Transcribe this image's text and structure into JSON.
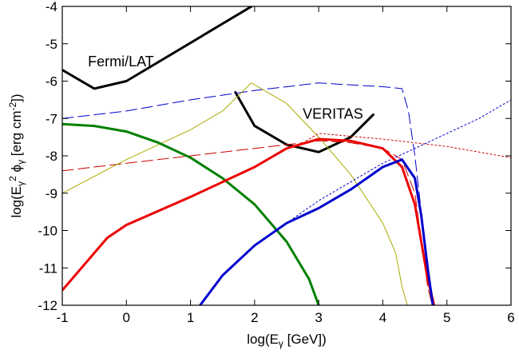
{
  "chart_data": {
    "type": "line",
    "xlim": [
      -1,
      6
    ],
    "ylim": [
      -12,
      -4
    ],
    "x_ticks": [
      "-1",
      "0",
      "1",
      "2",
      "3",
      "4",
      "5",
      "6"
    ],
    "y_ticks": [
      "-12",
      "-11",
      "-10",
      "-9",
      "-8",
      "-7",
      "-6",
      "-5",
      "-4"
    ],
    "xlabel": {
      "pre": "log(E",
      "sub": "γ",
      "post": " [GeV])"
    },
    "ylabel": {
      "pre": "log(E",
      "sub1": "γ",
      "sup": "2",
      "mid": " ϕ",
      "sub2": "γ",
      "post": " [erg cm",
      "sup2": "-2",
      "end": "])"
    },
    "annotations": [
      {
        "text": "Fermi/LAT",
        "x": -0.6,
        "y": -5.6
      },
      {
        "text": "VERITAS",
        "x": 2.75,
        "y": -7.0
      }
    ],
    "series": [
      {
        "color": "#000000",
        "dash": "solid",
        "width": 3,
        "x": [
          -1,
          -0.5,
          0,
          2.0
        ],
        "y": [
          -5.7,
          -6.2,
          -6.0,
          -3.95
        ]
      },
      {
        "color": "#000000",
        "dash": "solid",
        "width": 3,
        "x": [
          1.7,
          2.0,
          2.5,
          3.0,
          3.5,
          3.85
        ],
        "y": [
          -6.3,
          -7.2,
          -7.7,
          -7.9,
          -7.5,
          -6.9
        ]
      },
      {
        "color": "#0000cc",
        "dash": "long",
        "width": 1,
        "x": [
          -1,
          0,
          1,
          2,
          3,
          3.5,
          4,
          4.3,
          4.4,
          4.5,
          4.6,
          4.7,
          4.8,
          4.9
        ],
        "y": [
          -7.0,
          -6.8,
          -6.5,
          -6.25,
          -6.05,
          -6.1,
          -6.15,
          -6.2,
          -6.8,
          -8.0,
          -9.5,
          -11.0,
          -12.0,
          -12.5
        ]
      },
      {
        "color": "#cc0000",
        "dash": "long",
        "width": 1,
        "x": [
          -1,
          0,
          1,
          2,
          3,
          3.5,
          4,
          4.3,
          4.5,
          4.7,
          4.8
        ],
        "y": [
          -8.4,
          -8.2,
          -8.0,
          -7.8,
          -7.6,
          -7.65,
          -7.8,
          -8.1,
          -9.0,
          -11.5,
          -12.2
        ]
      },
      {
        "color": "#aaaa00",
        "dash": "solid",
        "width": 1,
        "x": [
          -1,
          0,
          1,
          1.5,
          1.95,
          2.5,
          3.0,
          3.5,
          4.0,
          4.2,
          4.3,
          4.4
        ],
        "y": [
          -9.0,
          -8.1,
          -7.3,
          -6.8,
          -6.05,
          -6.6,
          -7.5,
          -8.5,
          -9.8,
          -10.6,
          -11.5,
          -12.1
        ]
      },
      {
        "color": "#cc0000",
        "dash": "dot",
        "width": 1,
        "x": [
          2.8,
          3.0,
          4.0,
          5.0,
          6.0
        ],
        "y": [
          -7.6,
          -7.4,
          -7.55,
          -7.75,
          -8.05
        ]
      },
      {
        "color": "#0000cc",
        "dash": "dot",
        "width": 1,
        "x": [
          2.5,
          3.0,
          4.0,
          4.5,
          5.0,
          5.5,
          6.0
        ],
        "y": [
          -9.8,
          -9.2,
          -8.2,
          -7.8,
          -7.4,
          -7.0,
          -6.5
        ]
      },
      {
        "color": "#008000",
        "dash": "solid",
        "width": 3,
        "x": [
          -1,
          -0.5,
          0,
          0.5,
          1.0,
          1.5,
          2.0,
          2.5,
          2.85,
          3.0
        ],
        "y": [
          -7.15,
          -7.2,
          -7.35,
          -7.65,
          -8.05,
          -8.6,
          -9.3,
          -10.3,
          -11.3,
          -12.0
        ]
      },
      {
        "color": "#ee0000",
        "dash": "solid",
        "width": 3,
        "x": [
          -1,
          -0.3,
          0,
          1,
          2,
          2.5,
          3.0,
          3.5,
          4.0,
          4.3,
          4.5,
          4.6,
          4.7,
          4.8
        ],
        "y": [
          -11.6,
          -10.2,
          -9.85,
          -9.1,
          -8.3,
          -7.8,
          -7.55,
          -7.6,
          -7.8,
          -8.3,
          -9.3,
          -10.3,
          -11.3,
          -12.0
        ]
      },
      {
        "color": "#0000cc",
        "dash": "solid",
        "width": 3,
        "x": [
          1.15,
          1.5,
          2.0,
          2.5,
          3.0,
          3.5,
          4.0,
          4.3,
          4.5,
          4.6,
          4.7,
          4.78
        ],
        "y": [
          -12.0,
          -11.2,
          -10.4,
          -9.8,
          -9.4,
          -8.9,
          -8.3,
          -8.1,
          -8.6,
          -9.6,
          -11.0,
          -12.0
        ]
      }
    ]
  }
}
